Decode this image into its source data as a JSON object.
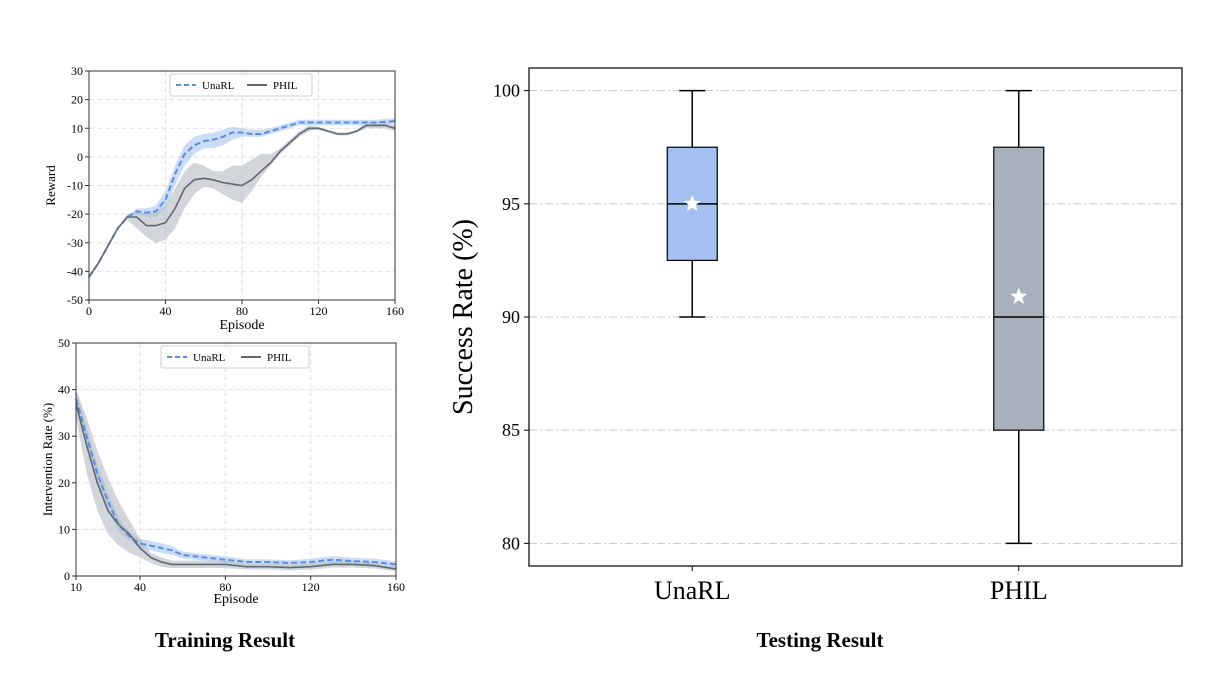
{
  "captions": {
    "left": "Training Result",
    "right": "Testing Result"
  },
  "colors": {
    "unarl": "#5b8ee0",
    "unarl_band": "#a9c4f0",
    "phil": "#5f6873",
    "phil_band": "#b4bac2",
    "unarl_box": "#a3c0f0",
    "phil_box": "#a8b1bb",
    "grid": "#c8c8c8"
  },
  "chart_data": [
    {
      "type": "line",
      "xlabel": "Episode",
      "ylabel": "Reward",
      "xlim": [
        0,
        160
      ],
      "ylim": [
        -50,
        30
      ],
      "xticks": [
        0,
        40,
        80,
        120,
        160
      ],
      "yticks": [
        -50,
        -40,
        -30,
        -20,
        -10,
        0,
        10,
        20,
        30
      ],
      "grid": true,
      "legend": "top-center",
      "series": [
        {
          "name": "UnaRL",
          "style": "dashed",
          "x": [
            0,
            5,
            10,
            15,
            20,
            25,
            30,
            35,
            40,
            45,
            50,
            55,
            60,
            65,
            70,
            75,
            80,
            85,
            90,
            95,
            100,
            105,
            110,
            115,
            120,
            130,
            140,
            150,
            160
          ],
          "y": [
            -42,
            -37,
            -31,
            -25,
            -21,
            -19,
            -19.5,
            -19,
            -15,
            -6,
            1,
            4,
            5.5,
            6,
            7,
            8.5,
            8.5,
            8,
            8,
            9,
            10,
            11,
            12,
            12,
            12,
            12,
            12,
            12,
            12.5
          ],
          "lower": [
            -42,
            -37,
            -31,
            -25,
            -21,
            -20,
            -21,
            -21,
            -18,
            -10,
            -3,
            1,
            3,
            3,
            4,
            6,
            7,
            7,
            7,
            8,
            9,
            10,
            11,
            11,
            11,
            11,
            11,
            11,
            11.5
          ],
          "upper": [
            -42,
            -37,
            -31,
            -25,
            -21,
            -18,
            -18,
            -17,
            -12,
            -3,
            4,
            7,
            8,
            8.5,
            9.5,
            10.5,
            10,
            9.5,
            9.5,
            10,
            11,
            12,
            13,
            13,
            13,
            13,
            13,
            13,
            13.5
          ]
        },
        {
          "name": "PHIL",
          "style": "solid",
          "x": [
            0,
            5,
            10,
            15,
            20,
            25,
            30,
            35,
            40,
            45,
            50,
            55,
            60,
            65,
            70,
            75,
            80,
            85,
            90,
            95,
            100,
            105,
            110,
            115,
            120,
            125,
            130,
            135,
            140,
            145,
            150,
            155,
            160
          ],
          "y": [
            -42,
            -37,
            -31,
            -25,
            -21,
            -21,
            -24,
            -24,
            -23,
            -18,
            -11,
            -8,
            -7.5,
            -8,
            -9,
            -9.5,
            -10,
            -8,
            -5,
            -2,
            2,
            5,
            8,
            10,
            10,
            9,
            8,
            8,
            9,
            11,
            11,
            11,
            10
          ],
          "lower": [
            -42,
            -37,
            -31,
            -25,
            -22,
            -25,
            -28,
            -30,
            -29,
            -25,
            -18,
            -13,
            -10.5,
            -11,
            -13,
            -15,
            -16,
            -12,
            -7,
            -3,
            1,
            4,
            7,
            9,
            9.5,
            8.5,
            7.5,
            7.5,
            8.5,
            10,
            10,
            10,
            9
          ],
          "upper": [
            -42,
            -37,
            -31,
            -25,
            -20,
            -19,
            -20,
            -19,
            -17,
            -11,
            -5,
            -2,
            -3,
            -5,
            -5,
            -3,
            -3,
            -1,
            1,
            1,
            3,
            6,
            9,
            11,
            10.5,
            9.5,
            8.5,
            8.5,
            9.5,
            12,
            12,
            12,
            11
          ]
        }
      ]
    },
    {
      "type": "line",
      "xlabel": "Episode",
      "ylabel": "Intervention  Rate (%)",
      "xlim": [
        10,
        160
      ],
      "ylim": [
        0,
        50
      ],
      "xticks": [
        10,
        40,
        80,
        120,
        160
      ],
      "yticks": [
        0,
        10,
        20,
        30,
        40,
        50
      ],
      "grid": true,
      "legend": "top-center",
      "series": [
        {
          "name": "UnaRL",
          "style": "dashed",
          "x": [
            10,
            15,
            20,
            25,
            30,
            35,
            40,
            45,
            50,
            55,
            60,
            70,
            80,
            90,
            100,
            110,
            120,
            130,
            140,
            150,
            160
          ],
          "y": [
            38,
            30,
            22,
            16,
            11,
            8.5,
            7,
            6.5,
            6,
            5.5,
            4.5,
            4,
            3.5,
            3,
            3,
            2.8,
            3,
            3.5,
            3.2,
            3,
            2.5
          ],
          "lower": [
            36,
            28,
            20,
            14,
            9.5,
            7.5,
            6,
            5.5,
            5,
            4.5,
            3.8,
            3.3,
            2.8,
            2.4,
            2.4,
            2.2,
            2.3,
            2.7,
            2.5,
            2.3,
            1.8
          ],
          "upper": [
            40,
            32,
            24,
            18,
            12.5,
            9.5,
            8,
            7.5,
            7,
            6.5,
            5.2,
            4.7,
            4.2,
            3.6,
            3.6,
            3.4,
            3.7,
            4.3,
            3.9,
            3.7,
            3.2
          ]
        },
        {
          "name": "PHIL",
          "style": "solid",
          "x": [
            10,
            15,
            20,
            25,
            30,
            35,
            40,
            45,
            50,
            55,
            60,
            70,
            80,
            90,
            100,
            110,
            120,
            130,
            140,
            150,
            160
          ],
          "y": [
            37,
            28,
            20,
            14,
            11,
            9,
            6,
            4,
            3,
            2.5,
            2.5,
            2.5,
            2.5,
            2,
            2,
            1.8,
            2,
            2.5,
            2.5,
            2.2,
            1.5
          ],
          "lower": [
            34,
            22,
            14,
            9,
            6.5,
            5,
            4,
            2.8,
            2,
            1.7,
            1.7,
            1.7,
            1.7,
            1.4,
            1.4,
            1.2,
            1.4,
            1.8,
            1.8,
            1.6,
            1
          ],
          "upper": [
            40,
            34,
            27,
            21,
            16,
            12,
            8,
            5,
            4,
            3.3,
            3.3,
            3.3,
            3.3,
            2.6,
            2.6,
            2.4,
            2.6,
            3.2,
            3.2,
            2.8,
            2
          ]
        }
      ]
    },
    {
      "type": "box",
      "xlabel": "",
      "ylabel": "Success  Rate (%)",
      "ylim": [
        79,
        101
      ],
      "yticks": [
        80,
        85,
        90,
        95,
        100
      ],
      "grid": true,
      "categories": [
        "UnaRL",
        "PHIL"
      ],
      "boxes": [
        {
          "name": "UnaRL",
          "min": 90,
          "q1": 92.5,
          "median": 95,
          "q3": 97.5,
          "max": 100,
          "mean": 95
        },
        {
          "name": "PHIL",
          "min": 80,
          "q1": 85,
          "median": 90,
          "q3": 97.5,
          "max": 100,
          "mean": 90.9
        }
      ]
    }
  ]
}
